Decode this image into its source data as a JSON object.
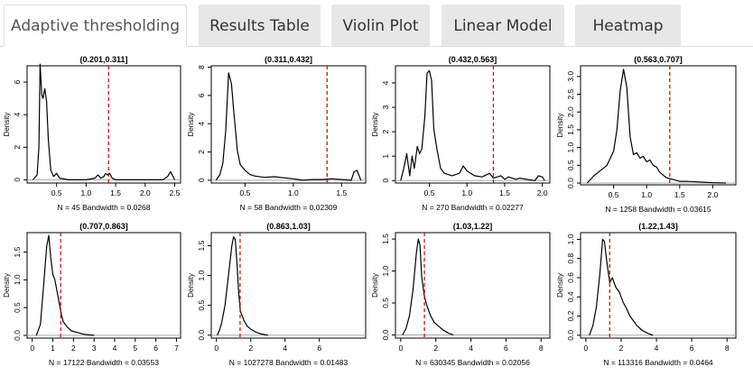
{
  "tabs": [
    {
      "label": "Adaptive thresholding",
      "active": true
    },
    {
      "label": "Results Table",
      "active": false
    },
    {
      "label": "Violin Plot",
      "active": false
    },
    {
      "label": "Linear Model",
      "active": false
    },
    {
      "label": "Heatmap",
      "active": false
    }
  ],
  "colors": {
    "density_line": "#000000",
    "threshold_line": "#cc0000",
    "baseline": "#aaaaaa",
    "active_tab_bg": "#ffffff",
    "tab_bg": "#e7e7e7"
  },
  "chart_data": [
    {
      "type": "line",
      "title": "(0.201,0.311]",
      "ylabel": "Density",
      "footer": "N = 45    Bandwidth = 0.0268",
      "xlim": [
        0,
        2.6
      ],
      "ylim": [
        -0.2,
        7
      ],
      "xticks": [
        0.5,
        1.0,
        1.5,
        2.0,
        2.5
      ],
      "xtick_labels": [
        "0.5",
        "1.0",
        "1.5",
        "2.0",
        "2.5"
      ],
      "yticks": [
        0,
        2,
        4,
        6
      ],
      "ytick_labels": [
        "0",
        "2",
        "4",
        "6"
      ],
      "threshold": 1.38,
      "series": [
        {
          "x": [
            0.1,
            0.17,
            0.2,
            0.22,
            0.25,
            0.27,
            0.3,
            0.33,
            0.36,
            0.4,
            0.45,
            0.5,
            0.55,
            0.7,
            1.0,
            1.15,
            1.2,
            1.25,
            1.3,
            1.33,
            1.36,
            1.4,
            1.44,
            1.5,
            2.3,
            2.38,
            2.43,
            2.5
          ],
          "y": [
            0,
            0.3,
            2,
            7.1,
            5.2,
            5,
            5.6,
            4.8,
            2.5,
            0.6,
            0.2,
            0.4,
            0.1,
            0,
            0,
            0.1,
            0.3,
            0.1,
            0.2,
            0.4,
            0.3,
            0.4,
            0.1,
            0,
            0,
            0.2,
            0.5,
            0
          ]
        }
      ]
    },
    {
      "type": "line",
      "title": "(0.311,0.432]",
      "ylabel": "Density",
      "footer": "N = 58    Bandwidth = 0.02309",
      "xlim": [
        0.15,
        1.75
      ],
      "ylim": [
        -0.2,
        8.1
      ],
      "xticks": [
        0.5,
        1.0,
        1.5
      ],
      "xtick_labels": [
        "0.5",
        "1.0",
        "1.5"
      ],
      "yticks": [
        0,
        2,
        4,
        6,
        8
      ],
      "ytick_labels": [
        "0",
        "2",
        "4",
        "6",
        "8"
      ],
      "threshold": 1.35,
      "series": [
        {
          "x": [
            0.2,
            0.24,
            0.27,
            0.3,
            0.33,
            0.36,
            0.38,
            0.42,
            0.45,
            0.5,
            0.55,
            0.6,
            0.7,
            0.8,
            1.0,
            1.1,
            1.2,
            1.3,
            1.4,
            1.6,
            1.63,
            1.66,
            1.7
          ],
          "y": [
            0,
            0.4,
            1.2,
            3.5,
            7.6,
            6.8,
            5.1,
            2.1,
            1.1,
            0.7,
            0.4,
            0.3,
            0.2,
            0.25,
            0.1,
            0,
            0.05,
            0.05,
            0.1,
            0,
            0.6,
            0.7,
            0
          ]
        }
      ]
    },
    {
      "type": "line",
      "title": "(0.432,0.563]",
      "ylabel": "Density",
      "footer": "N = 270    Bandwidth = 0.02277",
      "xlim": [
        0.05,
        2.1
      ],
      "ylim": [
        -0.1,
        4.7
      ],
      "xticks": [
        0.5,
        1.0,
        1.5,
        2.0
      ],
      "xtick_labels": [
        "0.5",
        "1.0",
        "1.5",
        "2.0"
      ],
      "yticks": [
        0,
        1,
        2,
        3,
        4
      ],
      "ytick_labels": [
        "0",
        "1",
        "2",
        "3",
        "4"
      ],
      "threshold": 1.35,
      "series": [
        {
          "x": [
            0.12,
            0.16,
            0.2,
            0.24,
            0.27,
            0.3,
            0.34,
            0.37,
            0.4,
            0.44,
            0.47,
            0.5,
            0.53,
            0.56,
            0.6,
            0.65,
            0.7,
            0.8,
            0.9,
            0.95,
            1.0,
            1.05,
            1.1,
            1.2,
            1.3,
            1.35,
            1.45,
            1.5,
            1.55,
            1.6,
            1.65,
            1.7,
            1.9,
            1.95,
            2.0,
            2.03
          ],
          "y": [
            0,
            0.5,
            1.1,
            0.2,
            1.0,
            0.5,
            1.4,
            1.1,
            1.3,
            2.6,
            4.4,
            4.5,
            4.1,
            2.1,
            1.3,
            0.5,
            0.3,
            0.2,
            0.3,
            0.6,
            0.4,
            0.3,
            0.2,
            0.15,
            0.3,
            0.1,
            0.2,
            0.05,
            0.15,
            0.1,
            0.05,
            0.1,
            0,
            0.2,
            0.15,
            0
          ]
        }
      ]
    },
    {
      "type": "line",
      "title": "(0.563,0.707]",
      "ylabel": "Density",
      "footer": "N = 1258    Bandwidth = 0.03615",
      "xlim": [
        0,
        2.35
      ],
      "ylim": [
        -0.05,
        3.3
      ],
      "xticks": [
        0.5,
        1.0,
        1.5,
        2.0
      ],
      "xtick_labels": [
        "0.5",
        "1.0",
        "1.5",
        "2.0"
      ],
      "yticks": [
        0,
        0.5,
        1.0,
        1.5,
        2.0,
        2.5,
        3.0
      ],
      "ytick_labels": [
        "0.0",
        "0.5",
        "1.0",
        "1.5",
        "2.0",
        "2.5",
        "3.0"
      ],
      "threshold": 1.35,
      "series": [
        {
          "x": [
            0.1,
            0.2,
            0.3,
            0.4,
            0.5,
            0.55,
            0.6,
            0.65,
            0.7,
            0.75,
            0.8,
            0.85,
            0.9,
            0.95,
            1.0,
            1.05,
            1.1,
            1.15,
            1.2,
            1.3,
            1.4,
            1.5,
            1.6,
            1.8,
            2.0,
            2.2
          ],
          "y": [
            0,
            0.2,
            0.35,
            0.5,
            0.9,
            1.5,
            2.6,
            3.2,
            2.7,
            1.3,
            0.8,
            0.85,
            0.7,
            0.75,
            0.6,
            0.65,
            0.5,
            0.45,
            0.3,
            0.15,
            0.1,
            0.05,
            0.05,
            0.03,
            0.01,
            0
          ]
        }
      ]
    },
    {
      "type": "line",
      "title": "(0.707,0.863]",
      "ylabel": "Density",
      "footer": "N = 17122    Bandwidth = 0.03553",
      "xlim": [
        -0.25,
        7.2
      ],
      "ylim": [
        -0.05,
        1.85
      ],
      "xticks": [
        0,
        1,
        2,
        3,
        4,
        5,
        6,
        7
      ],
      "xtick_labels": [
        "0",
        "1",
        "2",
        "3",
        "4",
        "5",
        "6",
        "7"
      ],
      "yticks": [
        0,
        0.5,
        1.0,
        1.5
      ],
      "ytick_labels": [
        "0.0",
        "0.5",
        "1.0",
        "1.5"
      ],
      "threshold": 1.38,
      "series": [
        {
          "x": [
            0.2,
            0.4,
            0.55,
            0.7,
            0.8,
            0.9,
            1.0,
            1.1,
            1.2,
            1.3,
            1.4,
            1.5,
            1.7,
            1.9,
            2.2,
            2.5,
            3.0
          ],
          "y": [
            0,
            0.2,
            0.9,
            1.6,
            1.8,
            1.4,
            1.1,
            1.0,
            0.8,
            0.6,
            0.4,
            0.25,
            0.15,
            0.08,
            0.05,
            0.02,
            0
          ]
        }
      ]
    },
    {
      "type": "line",
      "title": "(0.863,1.03]",
      "ylabel": "Density",
      "footer": "N = 1027278    Bandwidth = 0.01483",
      "xlim": [
        -0.3,
        8.7
      ],
      "ylim": [
        -0.05,
        1.72
      ],
      "xticks": [
        0,
        2,
        4,
        6
      ],
      "xtick_labels": [
        "0",
        "2",
        "4",
        "6"
      ],
      "yticks": [
        0,
        0.5,
        1.0,
        1.5
      ],
      "ytick_labels": [
        "0.0",
        "0.5",
        "1.0",
        "1.5"
      ],
      "threshold": 1.38,
      "series": [
        {
          "x": [
            0.05,
            0.2,
            0.3,
            0.5,
            0.7,
            0.9,
            1.0,
            1.1,
            1.2,
            1.3,
            1.4,
            1.6,
            1.8,
            2.0,
            2.3,
            2.6,
            3.0
          ],
          "y": [
            0,
            0.1,
            0.2,
            0.5,
            1.0,
            1.5,
            1.65,
            1.6,
            1.2,
            0.7,
            0.4,
            0.25,
            0.15,
            0.1,
            0.05,
            0.02,
            0
          ]
        }
      ]
    },
    {
      "type": "line",
      "title": "(1.03,1.22]",
      "ylabel": "Density",
      "footer": "N = 630345    Bandwidth = 0.02056",
      "xlim": [
        -0.3,
        8.5
      ],
      "ylim": [
        -0.05,
        1.6
      ],
      "xticks": [
        0,
        2,
        4,
        6,
        8
      ],
      "xtick_labels": [
        "0",
        "2",
        "4",
        "6",
        "8"
      ],
      "yticks": [
        0,
        0.5,
        1.0,
        1.5
      ],
      "ytick_labels": [
        "0.0",
        "0.5",
        "1.0",
        "1.5"
      ],
      "threshold": 1.35,
      "series": [
        {
          "x": [
            0.1,
            0.3,
            0.5,
            0.7,
            0.9,
            1.0,
            1.1,
            1.2,
            1.35,
            1.5,
            1.7,
            1.9,
            2.1,
            2.4,
            2.7,
            3.0
          ],
          "y": [
            0,
            0.1,
            0.3,
            0.7,
            1.3,
            1.5,
            1.4,
            0.9,
            0.6,
            0.45,
            0.3,
            0.2,
            0.15,
            0.08,
            0.03,
            0
          ]
        }
      ]
    },
    {
      "type": "line",
      "title": "(1.22,1.43]",
      "ylabel": "Density",
      "footer": "N = 113316    Bandwidth = 0.0464",
      "xlim": [
        -0.3,
        8.5
      ],
      "ylim": [
        -0.03,
        1.07
      ],
      "xticks": [
        0,
        2,
        4,
        6,
        8
      ],
      "xtick_labels": [
        "0",
        "2",
        "4",
        "6",
        "8"
      ],
      "yticks": [
        0,
        0.2,
        0.4,
        0.6,
        0.8,
        1.0
      ],
      "ytick_labels": [
        "0.0",
        "0.2",
        "0.4",
        "0.6",
        "0.8",
        "1.0"
      ],
      "threshold": 1.35,
      "series": [
        {
          "x": [
            0.2,
            0.4,
            0.6,
            0.8,
            0.95,
            1.05,
            1.2,
            1.35,
            1.5,
            1.6,
            1.7,
            1.9,
            2.1,
            2.3,
            2.5,
            2.7,
            2.9,
            3.2,
            3.5,
            3.8
          ],
          "y": [
            0,
            0.1,
            0.3,
            0.65,
            1.0,
            0.98,
            0.75,
            0.55,
            0.6,
            0.55,
            0.5,
            0.45,
            0.35,
            0.28,
            0.2,
            0.15,
            0.1,
            0.05,
            0.02,
            0
          ]
        }
      ]
    }
  ]
}
